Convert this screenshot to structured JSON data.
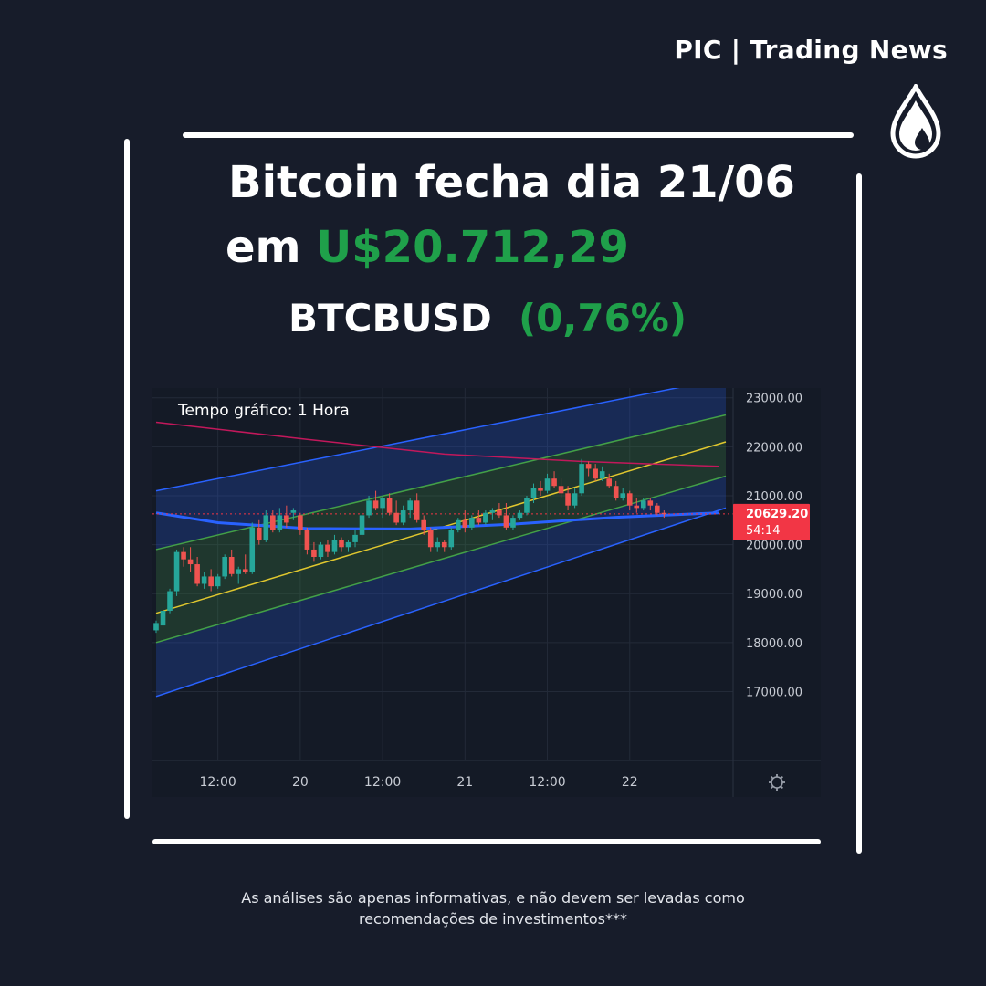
{
  "brand": {
    "name": "PIC | Trading News",
    "logo_icon": "drop-icon"
  },
  "headline": {
    "line1": "Bitcoin fecha dia 21/06",
    "line2_prefix": "em",
    "price": "U$20.712,29",
    "ticker": "BTCBUSD",
    "change": "(0,76%)"
  },
  "colors": {
    "background": "#171c2a",
    "accent_green": "#1fa04a",
    "candle_up": "#26a69a",
    "candle_down": "#ef5350",
    "price_tag": "#f23645"
  },
  "footer": {
    "line1": "As análises são apenas informativas, e não devem ser levadas como",
    "line2": "recomendações de investimentos***"
  },
  "chart_data": {
    "type": "candlestick",
    "title": "",
    "annotation": "Tempo gráfico: 1 Hora",
    "ylim": [
      16300,
      23200
    ],
    "y_ticks": [
      "23000.00",
      "22000.00",
      "21000.00",
      "20000.00",
      "19000.00",
      "18000.00",
      "17000.00"
    ],
    "y_tick_values": [
      23000,
      22000,
      21000,
      20000,
      19000,
      18000,
      17000
    ],
    "x_ticks": [
      "12:00",
      "20",
      "12:00",
      "21",
      "12:00",
      "22"
    ],
    "x_tick_hours": [
      12,
      24,
      36,
      48,
      60,
      72
    ],
    "x_range_hours": [
      3,
      86
    ],
    "last_price": "20629.20",
    "countdown": "54:14",
    "last_price_value": 20629.2,
    "candles": [
      {
        "t": 3,
        "o": 18250,
        "h": 18450,
        "l": 18200,
        "c": 18400
      },
      {
        "t": 4,
        "o": 18350,
        "h": 18700,
        "l": 18300,
        "c": 18650
      },
      {
        "t": 5,
        "o": 18650,
        "h": 19100,
        "l": 18600,
        "c": 19050
      },
      {
        "t": 6,
        "o": 19050,
        "h": 19900,
        "l": 18950,
        "c": 19850
      },
      {
        "t": 7,
        "o": 19850,
        "h": 19950,
        "l": 19550,
        "c": 19700
      },
      {
        "t": 8,
        "o": 19700,
        "h": 19950,
        "l": 19450,
        "c": 19600
      },
      {
        "t": 9,
        "o": 19600,
        "h": 19750,
        "l": 19150,
        "c": 19200
      },
      {
        "t": 10,
        "o": 19200,
        "h": 19450,
        "l": 19100,
        "c": 19350
      },
      {
        "t": 11,
        "o": 19350,
        "h": 19500,
        "l": 19050,
        "c": 19150
      },
      {
        "t": 12,
        "o": 19150,
        "h": 19400,
        "l": 19100,
        "c": 19350
      },
      {
        "t": 13,
        "o": 19350,
        "h": 19800,
        "l": 19300,
        "c": 19750
      },
      {
        "t": 14,
        "o": 19750,
        "h": 19900,
        "l": 19350,
        "c": 19400
      },
      {
        "t": 15,
        "o": 19400,
        "h": 19550,
        "l": 19200,
        "c": 19500
      },
      {
        "t": 16,
        "o": 19500,
        "h": 19800,
        "l": 19400,
        "c": 19450
      },
      {
        "t": 17,
        "o": 19450,
        "h": 20450,
        "l": 19400,
        "c": 20350
      },
      {
        "t": 18,
        "o": 20350,
        "h": 20500,
        "l": 20000,
        "c": 20100
      },
      {
        "t": 19,
        "o": 20100,
        "h": 20700,
        "l": 20050,
        "c": 20600
      },
      {
        "t": 20,
        "o": 20600,
        "h": 20700,
        "l": 20250,
        "c": 20300
      },
      {
        "t": 21,
        "o": 20300,
        "h": 20750,
        "l": 20250,
        "c": 20600
      },
      {
        "t": 22,
        "o": 20600,
        "h": 20800,
        "l": 20350,
        "c": 20450
      },
      {
        "t": 23,
        "o": 20650,
        "h": 20750,
        "l": 20500,
        "c": 20700
      },
      {
        "t": 24,
        "o": 20600,
        "h": 20650,
        "l": 20200,
        "c": 20300
      },
      {
        "t": 25,
        "o": 20300,
        "h": 20350,
        "l": 19800,
        "c": 19900
      },
      {
        "t": 26,
        "o": 19900,
        "h": 20050,
        "l": 19650,
        "c": 19750
      },
      {
        "t": 27,
        "o": 19750,
        "h": 20050,
        "l": 19700,
        "c": 20000
      },
      {
        "t": 28,
        "o": 20000,
        "h": 20100,
        "l": 19750,
        "c": 19850
      },
      {
        "t": 29,
        "o": 19850,
        "h": 20200,
        "l": 19800,
        "c": 20100
      },
      {
        "t": 30,
        "o": 20100,
        "h": 20150,
        "l": 19850,
        "c": 19950
      },
      {
        "t": 31,
        "o": 19950,
        "h": 20100,
        "l": 19850,
        "c": 20050
      },
      {
        "t": 32,
        "o": 20050,
        "h": 20300,
        "l": 19950,
        "c": 20200
      },
      {
        "t": 33,
        "o": 20200,
        "h": 20650,
        "l": 20150,
        "c": 20600
      },
      {
        "t": 34,
        "o": 20600,
        "h": 21000,
        "l": 20550,
        "c": 20900
      },
      {
        "t": 35,
        "o": 20900,
        "h": 21100,
        "l": 20700,
        "c": 20750
      },
      {
        "t": 36,
        "o": 20750,
        "h": 21000,
        "l": 20550,
        "c": 20950
      },
      {
        "t": 37,
        "o": 20950,
        "h": 21050,
        "l": 20600,
        "c": 20650
      },
      {
        "t": 38,
        "o": 20650,
        "h": 20900,
        "l": 20400,
        "c": 20450
      },
      {
        "t": 39,
        "o": 20450,
        "h": 20800,
        "l": 20400,
        "c": 20700
      },
      {
        "t": 40,
        "o": 20700,
        "h": 20950,
        "l": 20550,
        "c": 20900
      },
      {
        "t": 41,
        "o": 20900,
        "h": 21050,
        "l": 20450,
        "c": 20500
      },
      {
        "t": 42,
        "o": 20500,
        "h": 20600,
        "l": 20200,
        "c": 20300
      },
      {
        "t": 43,
        "o": 20300,
        "h": 20350,
        "l": 19850,
        "c": 19950
      },
      {
        "t": 44,
        "o": 19950,
        "h": 20150,
        "l": 19850,
        "c": 20050
      },
      {
        "t": 45,
        "o": 20050,
        "h": 20100,
        "l": 19850,
        "c": 19950
      },
      {
        "t": 46,
        "o": 19950,
        "h": 20350,
        "l": 19900,
        "c": 20300
      },
      {
        "t": 47,
        "o": 20300,
        "h": 20550,
        "l": 20250,
        "c": 20500
      },
      {
        "t": 48,
        "o": 20500,
        "h": 20700,
        "l": 20250,
        "c": 20350
      },
      {
        "t": 49,
        "o": 20350,
        "h": 20600,
        "l": 20300,
        "c": 20550
      },
      {
        "t": 50,
        "o": 20550,
        "h": 20700,
        "l": 20400,
        "c": 20450
      },
      {
        "t": 51,
        "o": 20450,
        "h": 20700,
        "l": 20400,
        "c": 20650
      },
      {
        "t": 52,
        "o": 20650,
        "h": 20750,
        "l": 20500,
        "c": 20700
      },
      {
        "t": 53,
        "o": 20700,
        "h": 20850,
        "l": 20550,
        "c": 20600
      },
      {
        "t": 54,
        "o": 20600,
        "h": 20850,
        "l": 20300,
        "c": 20350
      },
      {
        "t": 55,
        "o": 20350,
        "h": 20600,
        "l": 20300,
        "c": 20550
      },
      {
        "t": 56,
        "o": 20550,
        "h": 20700,
        "l": 20500,
        "c": 20650
      },
      {
        "t": 57,
        "o": 20650,
        "h": 21000,
        "l": 20600,
        "c": 20950
      },
      {
        "t": 58,
        "o": 20950,
        "h": 21250,
        "l": 20850,
        "c": 21150
      },
      {
        "t": 59,
        "o": 21150,
        "h": 21300,
        "l": 21000,
        "c": 21100
      },
      {
        "t": 60,
        "o": 21100,
        "h": 21450,
        "l": 21050,
        "c": 21350
      },
      {
        "t": 61,
        "o": 21350,
        "h": 21500,
        "l": 21150,
        "c": 21200
      },
      {
        "t": 62,
        "o": 21200,
        "h": 21350,
        "l": 20950,
        "c": 21050
      },
      {
        "t": 63,
        "o": 21050,
        "h": 21200,
        "l": 20700,
        "c": 20800
      },
      {
        "t": 64,
        "o": 20800,
        "h": 21150,
        "l": 20750,
        "c": 21050
      },
      {
        "t": 65,
        "o": 21050,
        "h": 21750,
        "l": 21000,
        "c": 21650
      },
      {
        "t": 66,
        "o": 21650,
        "h": 21700,
        "l": 21400,
        "c": 21550
      },
      {
        "t": 67,
        "o": 21550,
        "h": 21650,
        "l": 21300,
        "c": 21350
      },
      {
        "t": 68,
        "o": 21350,
        "h": 21600,
        "l": 21300,
        "c": 21500
      },
      {
        "t": 69,
        "o": 21350,
        "h": 21450,
        "l": 21150,
        "c": 21200
      },
      {
        "t": 70,
        "o": 21200,
        "h": 21300,
        "l": 20900,
        "c": 20950
      },
      {
        "t": 71,
        "o": 20950,
        "h": 21150,
        "l": 20900,
        "c": 21050
      },
      {
        "t": 72,
        "o": 21050,
        "h": 21100,
        "l": 20700,
        "c": 20800
      },
      {
        "t": 73,
        "o": 20800,
        "h": 20950,
        "l": 20650,
        "c": 20750
      },
      {
        "t": 74,
        "o": 20750,
        "h": 20950,
        "l": 20700,
        "c": 20900
      },
      {
        "t": 75,
        "o": 20900,
        "h": 20950,
        "l": 20700,
        "c": 20800
      },
      {
        "t": 76,
        "o": 20800,
        "h": 20850,
        "l": 20600,
        "c": 20650
      },
      {
        "t": 77,
        "o": 20650,
        "h": 20700,
        "l": 20550,
        "c": 20629
      }
    ],
    "regression_channel": {
      "hours": [
        3,
        86
      ],
      "upper": [
        21100,
        23400
      ],
      "upper_mid": [
        19900,
        22650
      ],
      "center": [
        18600,
        22100
      ],
      "lower_mid": [
        18000,
        21400
      ],
      "lower": [
        16900,
        20750
      ]
    },
    "moving_averages": [
      {
        "color": "#c2185b",
        "points": [
          [
            3,
            22500
          ],
          [
            25,
            22150
          ],
          [
            45,
            21850
          ],
          [
            65,
            21700
          ],
          [
            85,
            21600
          ]
        ]
      },
      {
        "color": "#2962ff",
        "points": [
          [
            3,
            20650
          ],
          [
            12,
            20450
          ],
          [
            25,
            20330
          ],
          [
            40,
            20320
          ],
          [
            55,
            20420
          ],
          [
            70,
            20560
          ],
          [
            85,
            20650
          ]
        ]
      }
    ]
  }
}
